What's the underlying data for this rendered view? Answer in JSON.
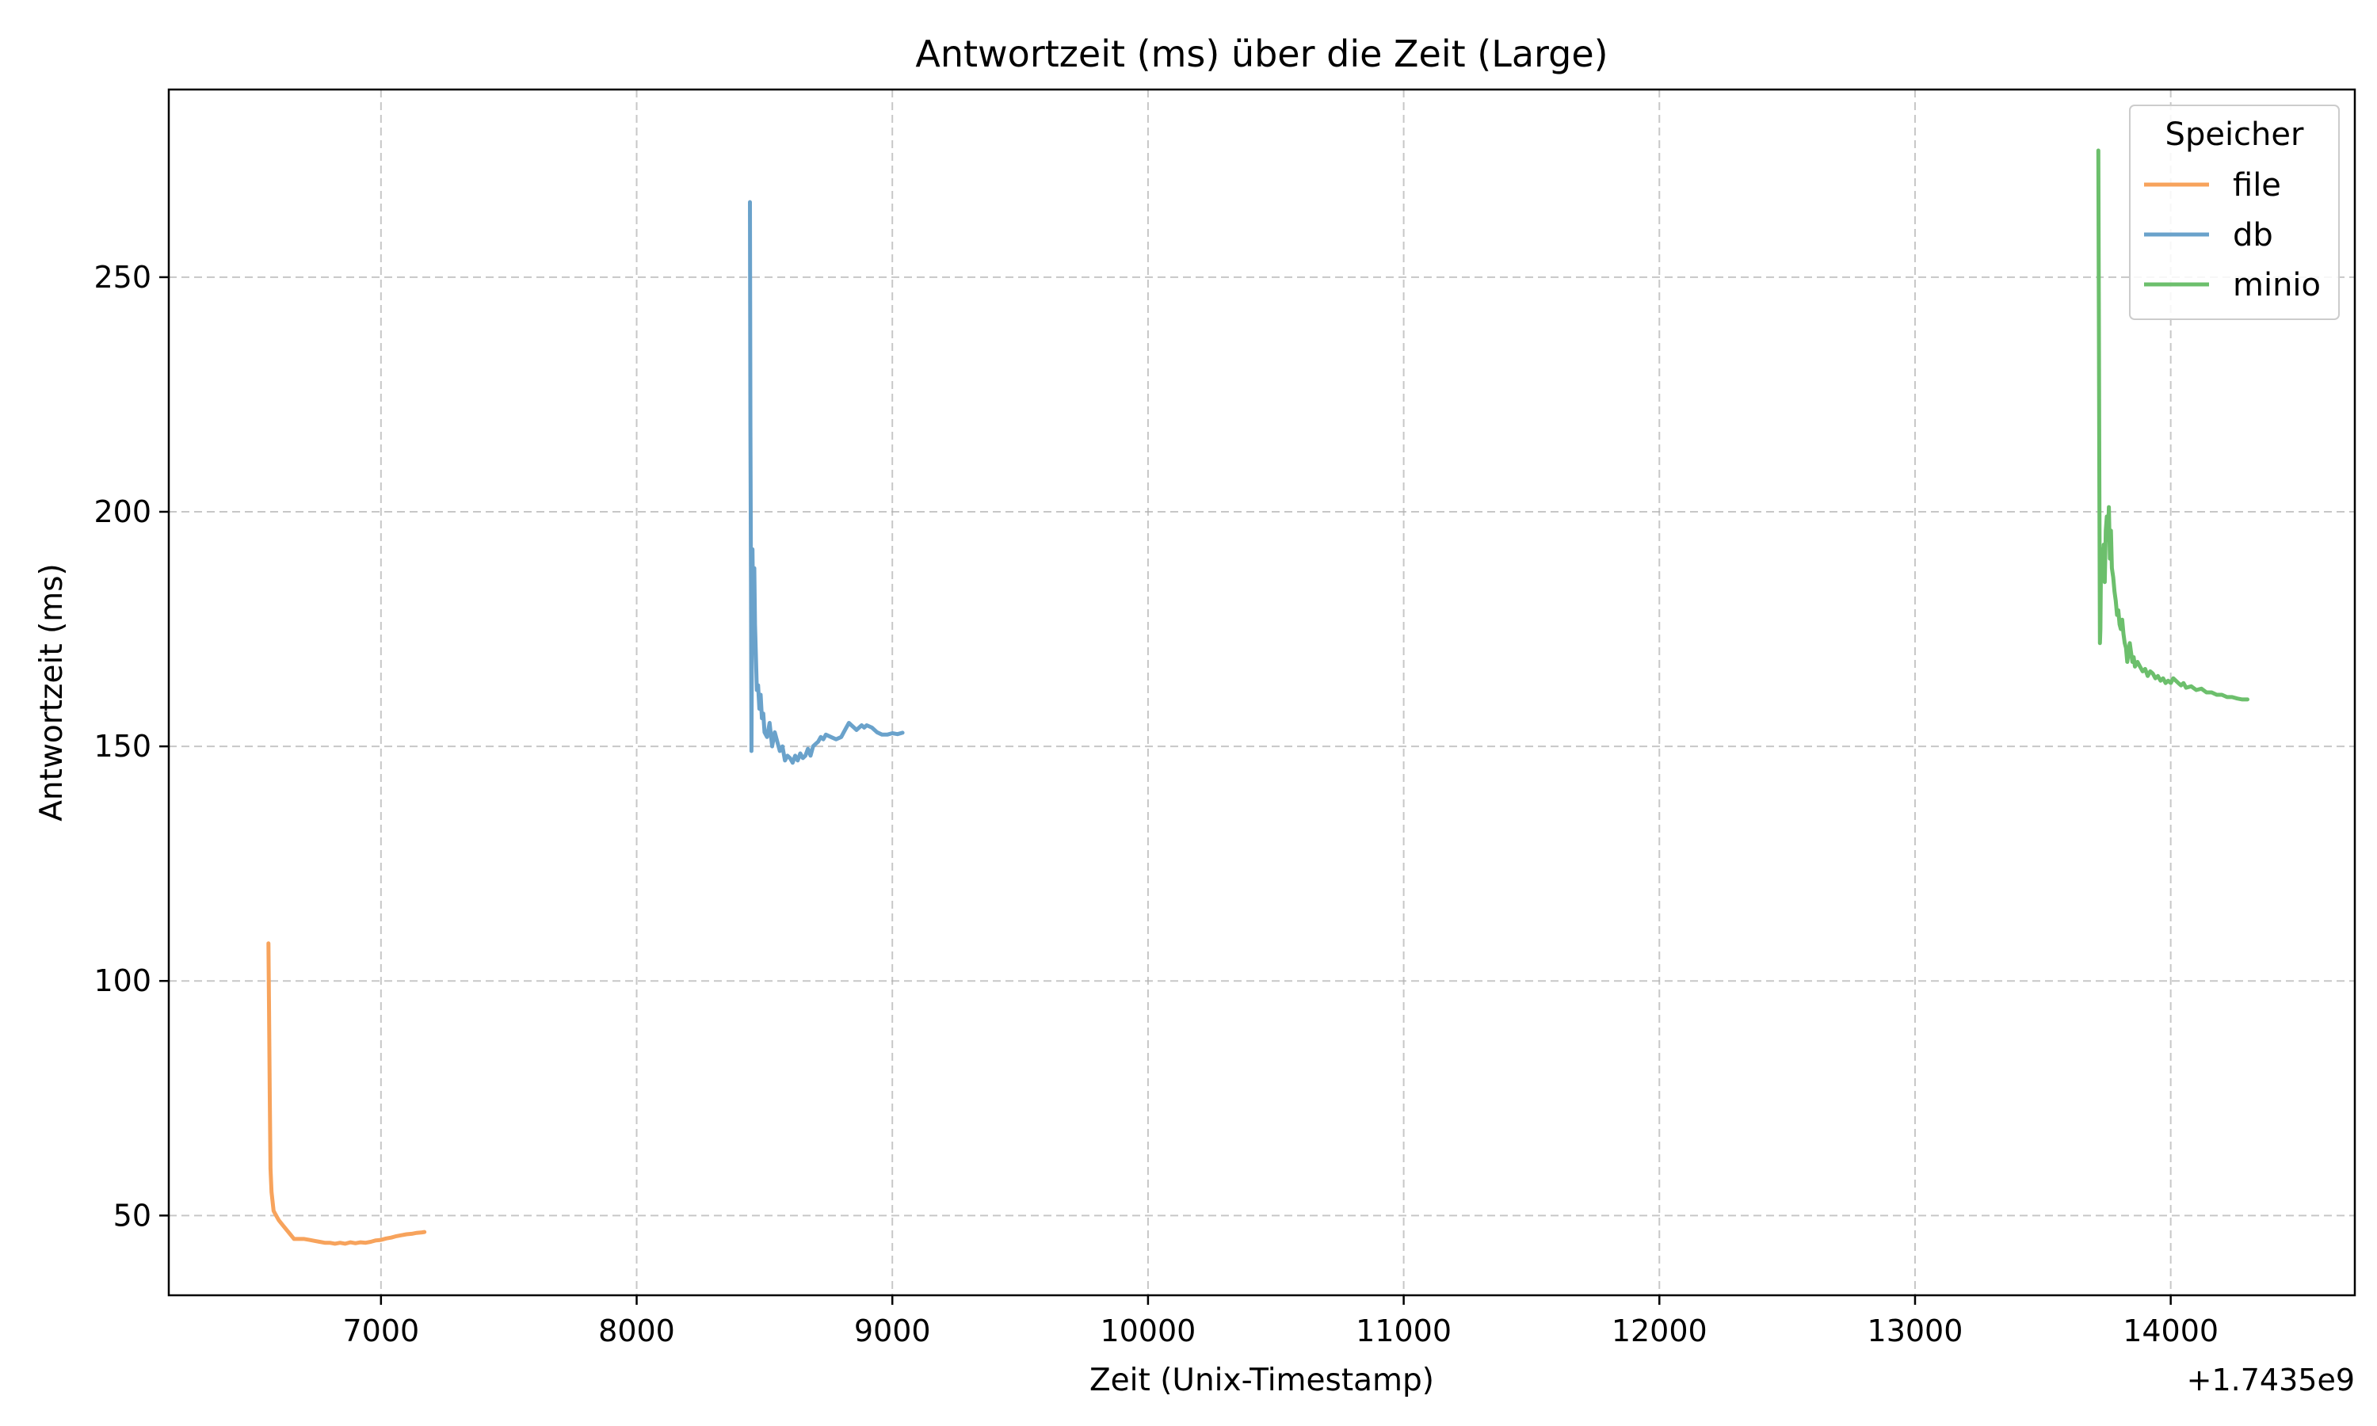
{
  "chart_data": {
    "type": "line",
    "title": "Antwortzeit (ms) über die Zeit (Large)",
    "xlabel": "Zeit (Unix-Timestamp)",
    "ylabel": "Antwortzeit (ms)",
    "x_offset_label": "+1.7435e9",
    "xlim": [
      6170,
      14720
    ],
    "ylim": [
      33,
      290
    ],
    "xticks": [
      7000,
      8000,
      9000,
      10000,
      11000,
      12000,
      13000,
      14000
    ],
    "xtick_labels": [
      "7000",
      "8000",
      "9000",
      "10000",
      "11000",
      "12000",
      "13000",
      "14000"
    ],
    "yticks": [
      50,
      100,
      150,
      200,
      250
    ],
    "ytick_labels": [
      "50",
      "100",
      "150",
      "200",
      "250"
    ],
    "grid": true,
    "legend": {
      "title": "Speicher",
      "placement": "top-right"
    },
    "series": [
      {
        "name": "file",
        "color": "#f7a35c",
        "points": [
          [
            6560,
            108
          ],
          [
            6562,
            95
          ],
          [
            6565,
            75
          ],
          [
            6568,
            60
          ],
          [
            6572,
            55
          ],
          [
            6580,
            51
          ],
          [
            6590,
            50
          ],
          [
            6600,
            49
          ],
          [
            6615,
            48
          ],
          [
            6630,
            47
          ],
          [
            6645,
            46
          ],
          [
            6660,
            45
          ],
          [
            6680,
            45
          ],
          [
            6700,
            45
          ],
          [
            6720,
            44.8
          ],
          [
            6740,
            44.6
          ],
          [
            6760,
            44.4
          ],
          [
            6780,
            44.2
          ],
          [
            6800,
            44.2
          ],
          [
            6820,
            44.0
          ],
          [
            6840,
            44.2
          ],
          [
            6860,
            44.0
          ],
          [
            6880,
            44.3
          ],
          [
            6900,
            44.1
          ],
          [
            6920,
            44.3
          ],
          [
            6940,
            44.2
          ],
          [
            6960,
            44.4
          ],
          [
            6980,
            44.7
          ],
          [
            7000,
            44.8
          ],
          [
            7020,
            45.1
          ],
          [
            7040,
            45.3
          ],
          [
            7060,
            45.6
          ],
          [
            7080,
            45.8
          ],
          [
            7100,
            46.0
          ],
          [
            7120,
            46.1
          ],
          [
            7140,
            46.3
          ],
          [
            7160,
            46.4
          ],
          [
            7170,
            46.5
          ]
        ]
      },
      {
        "name": "db",
        "color": "#6aa2cb",
        "points": [
          [
            8443,
            266
          ],
          [
            8445,
            218
          ],
          [
            8447,
            185
          ],
          [
            8449,
            149
          ],
          [
            8451,
            175
          ],
          [
            8453,
            192
          ],
          [
            8455,
            183
          ],
          [
            8458,
            178
          ],
          [
            8460,
            188
          ],
          [
            8463,
            176
          ],
          [
            8466,
            170
          ],
          [
            8470,
            162
          ],
          [
            8475,
            163
          ],
          [
            8480,
            158
          ],
          [
            8485,
            161
          ],
          [
            8490,
            156
          ],
          [
            8495,
            157
          ],
          [
            8500,
            153
          ],
          [
            8510,
            152
          ],
          [
            8520,
            155
          ],
          [
            8530,
            150
          ],
          [
            8540,
            153
          ],
          [
            8550,
            151
          ],
          [
            8560,
            149
          ],
          [
            8570,
            150
          ],
          [
            8580,
            147
          ],
          [
            8590,
            148
          ],
          [
            8600,
            147.5
          ],
          [
            8610,
            146.5
          ],
          [
            8620,
            148
          ],
          [
            8630,
            147
          ],
          [
            8640,
            148.5
          ],
          [
            8650,
            147.5
          ],
          [
            8660,
            148
          ],
          [
            8670,
            149.5
          ],
          [
            8680,
            148
          ],
          [
            8690,
            150
          ],
          [
            8700,
            150.5
          ],
          [
            8710,
            151
          ],
          [
            8720,
            152
          ],
          [
            8730,
            151.5
          ],
          [
            8740,
            152.5
          ],
          [
            8760,
            152
          ],
          [
            8780,
            151.5
          ],
          [
            8800,
            152
          ],
          [
            8810,
            153
          ],
          [
            8820,
            154
          ],
          [
            8830,
            155
          ],
          [
            8840,
            154.5
          ],
          [
            8850,
            154
          ],
          [
            8860,
            153.5
          ],
          [
            8870,
            154
          ],
          [
            8880,
            154.5
          ],
          [
            8890,
            154
          ],
          [
            8900,
            154.5
          ],
          [
            8920,
            154
          ],
          [
            8940,
            153
          ],
          [
            8960,
            152.5
          ],
          [
            8980,
            152.5
          ],
          [
            9000,
            152.8
          ],
          [
            9020,
            152.6
          ],
          [
            9040,
            152.9
          ]
        ]
      },
      {
        "name": "minio",
        "color": "#6cbf6c",
        "points": [
          [
            13717,
            277
          ],
          [
            13719,
            240
          ],
          [
            13721,
            205
          ],
          [
            13723,
            172
          ],
          [
            13725,
            175
          ],
          [
            13727,
            188
          ],
          [
            13730,
            192
          ],
          [
            13734,
            188
          ],
          [
            13738,
            193
          ],
          [
            13742,
            185
          ],
          [
            13746,
            196
          ],
          [
            13750,
            199
          ],
          [
            13754,
            194
          ],
          [
            13758,
            201
          ],
          [
            13762,
            190
          ],
          [
            13766,
            196
          ],
          [
            13770,
            188
          ],
          [
            13775,
            186
          ],
          [
            13780,
            183
          ],
          [
            13785,
            181
          ],
          [
            13790,
            178
          ],
          [
            13795,
            179
          ],
          [
            13800,
            176
          ],
          [
            13805,
            175
          ],
          [
            13810,
            177
          ],
          [
            13815,
            174
          ],
          [
            13820,
            172
          ],
          [
            13825,
            171
          ],
          [
            13830,
            168
          ],
          [
            13835,
            170
          ],
          [
            13840,
            172
          ],
          [
            13845,
            170
          ],
          [
            13850,
            168
          ],
          [
            13855,
            169
          ],
          [
            13860,
            167
          ],
          [
            13870,
            168
          ],
          [
            13880,
            167
          ],
          [
            13890,
            166
          ],
          [
            13900,
            166.5
          ],
          [
            13910,
            165
          ],
          [
            13920,
            166
          ],
          [
            13930,
            165.5
          ],
          [
            13940,
            164.5
          ],
          [
            13950,
            165
          ],
          [
            13960,
            164
          ],
          [
            13970,
            164.5
          ],
          [
            13980,
            163.5
          ],
          [
            13990,
            164
          ],
          [
            14000,
            163.5
          ],
          [
            14010,
            164.5
          ],
          [
            14020,
            164
          ],
          [
            14030,
            163.5
          ],
          [
            14040,
            163
          ],
          [
            14050,
            163.5
          ],
          [
            14060,
            162.5
          ],
          [
            14080,
            162.8
          ],
          [
            14100,
            162
          ],
          [
            14120,
            162.3
          ],
          [
            14140,
            161.5
          ],
          [
            14160,
            161.5
          ],
          [
            14180,
            161
          ],
          [
            14200,
            161
          ],
          [
            14220,
            160.5
          ],
          [
            14240,
            160.5
          ],
          [
            14260,
            160.2
          ],
          [
            14280,
            160
          ],
          [
            14300,
            160
          ]
        ]
      }
    ]
  }
}
